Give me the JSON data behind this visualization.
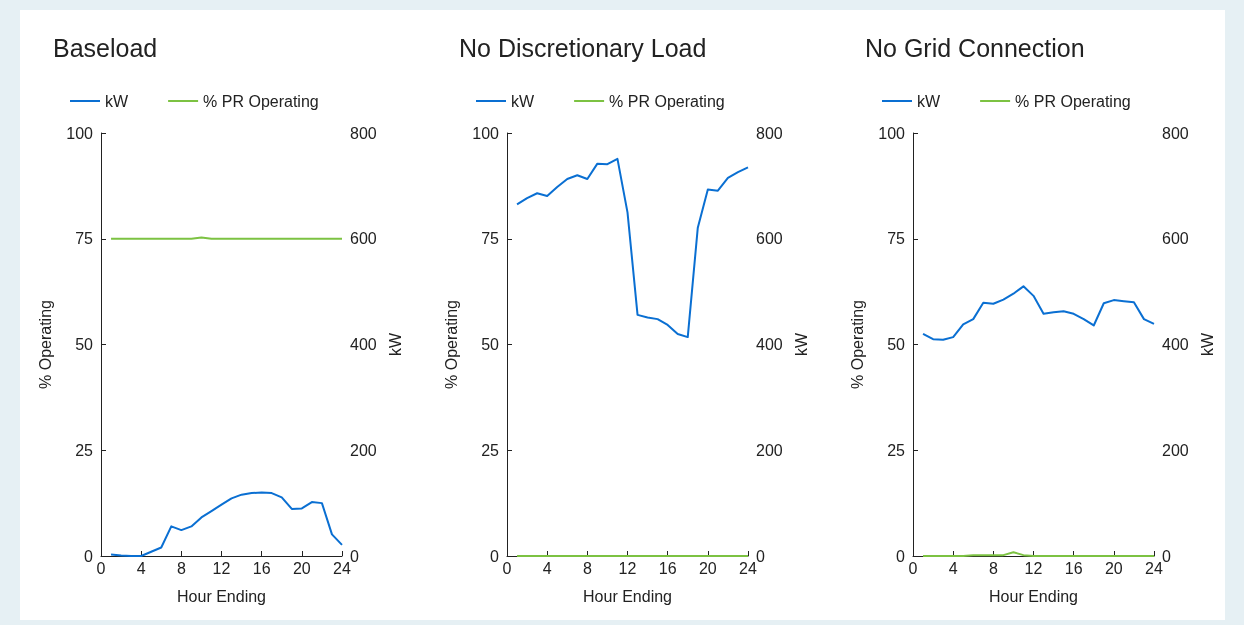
{
  "chart_data": [
    {
      "type": "line",
      "title": "Baseload",
      "xlabel": "Hour Ending",
      "ylabel": "% Operating",
      "y2label": "kW",
      "x": [
        1,
        2,
        3,
        4,
        5,
        6,
        7,
        8,
        9,
        10,
        11,
        12,
        13,
        14,
        15,
        16,
        17,
        18,
        19,
        20,
        21,
        22,
        23,
        24
      ],
      "xlim": [
        0,
        24
      ],
      "xticks": [
        0,
        4,
        8,
        12,
        16,
        20,
        24
      ],
      "ylim": [
        0,
        100
      ],
      "yticks": [
        0,
        25,
        50,
        75,
        100
      ],
      "y2lim": [
        0,
        800
      ],
      "y2ticks": [
        0,
        200,
        400,
        600,
        800
      ],
      "grid": false,
      "legend": "top left",
      "marker": "none",
      "series": [
        {
          "name": "kW",
          "color": "#0a6fd2",
          "axis": "y2",
          "values": [
            3,
            1,
            0,
            0,
            8,
            16,
            56,
            49,
            56,
            73,
            85,
            97,
            109,
            116,
            119,
            120,
            119,
            111,
            89,
            90,
            102,
            100,
            41,
            21
          ]
        },
        {
          "name": "% PR Operating",
          "color": "#7cc242",
          "values": [
            75,
            75,
            75,
            75,
            75,
            75,
            75,
            75,
            75,
            75.3,
            75,
            75,
            75,
            75,
            75,
            75,
            75,
            75,
            75,
            75,
            75,
            75,
            75,
            75
          ]
        }
      ]
    },
    {
      "type": "line",
      "title": "No Discretionary Load",
      "xlabel": "Hour Ending",
      "ylabel": "% Operating",
      "y2label": "kW",
      "x": [
        1,
        2,
        3,
        4,
        5,
        6,
        7,
        8,
        9,
        10,
        11,
        12,
        13,
        14,
        15,
        16,
        17,
        18,
        19,
        20,
        21,
        22,
        23,
        24
      ],
      "xlim": [
        0,
        24
      ],
      "xticks": [
        0,
        4,
        8,
        12,
        16,
        20,
        24
      ],
      "ylim": [
        0,
        100
      ],
      "yticks": [
        0,
        25,
        50,
        75,
        100
      ],
      "y2lim": [
        0,
        800
      ],
      "y2ticks": [
        0,
        200,
        400,
        600,
        800
      ],
      "grid": false,
      "legend": "top left",
      "marker": "none",
      "series": [
        {
          "name": "kW",
          "color": "#0a6fd2",
          "axis": "y2",
          "values": [
            665,
            677,
            686,
            681,
            698,
            713,
            720,
            713,
            742,
            741,
            751,
            650,
            456,
            451,
            448,
            437,
            420,
            414,
            621,
            693,
            691,
            715,
            726,
            735
          ]
        },
        {
          "name": "% PR Operating",
          "color": "#7cc242",
          "values": [
            0,
            0,
            0,
            0,
            0,
            0,
            0,
            0,
            0,
            0,
            0,
            0,
            0,
            0,
            0,
            0,
            0,
            0,
            0,
            0,
            0,
            0,
            0,
            0
          ]
        }
      ]
    },
    {
      "type": "line",
      "title": "No Grid Connection",
      "xlabel": "Hour Ending",
      "ylabel": "% Operating",
      "y2label": "kW",
      "x": [
        1,
        2,
        3,
        4,
        5,
        6,
        7,
        8,
        9,
        10,
        11,
        12,
        13,
        14,
        15,
        16,
        17,
        18,
        19,
        20,
        21,
        22,
        23,
        24
      ],
      "xlim": [
        0,
        24
      ],
      "xticks": [
        0,
        4,
        8,
        12,
        16,
        20,
        24
      ],
      "ylim": [
        0,
        100
      ],
      "yticks": [
        0,
        25,
        50,
        75,
        100
      ],
      "y2lim": [
        0,
        800
      ],
      "y2ticks": [
        0,
        200,
        400,
        600,
        800
      ],
      "grid": false,
      "legend": "top left",
      "marker": "none",
      "series": [
        {
          "name": "kW",
          "color": "#0a6fd2",
          "axis": "y2",
          "values": [
            420,
            410,
            409,
            414,
            438,
            448,
            479,
            477,
            485,
            496,
            510,
            492,
            458,
            461,
            463,
            458,
            448,
            436,
            478,
            484,
            482,
            480,
            448,
            439
          ]
        },
        {
          "name": "% PR Operating",
          "color": "#7cc242",
          "values": [
            0,
            0,
            0,
            0,
            0,
            0.2,
            0.2,
            0.2,
            0.2,
            0.9,
            0.2,
            0,
            0,
            0,
            0,
            0,
            0,
            0,
            0,
            0,
            0,
            0,
            0,
            0
          ]
        }
      ]
    }
  ]
}
